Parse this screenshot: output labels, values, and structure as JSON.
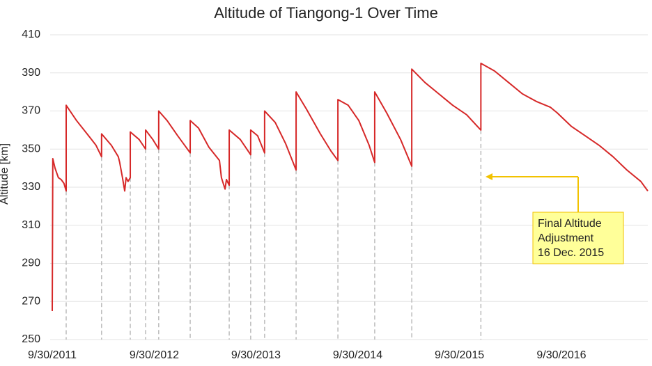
{
  "chart_data": {
    "type": "line",
    "title": "Altitude of Tiangong-1 Over Time",
    "y_label": "Altitude [km]",
    "x": [
      "2011-09-30",
      "2011-10-02",
      "2011-10-10",
      "2011-10-22",
      "2011-11-01",
      "2011-11-11",
      "2011-11-19",
      "2011-11-19",
      "2011-12-26",
      "2012-02-02",
      "2012-03-05",
      "2012-03-25",
      "2012-03-25",
      "2012-04-29",
      "2012-05-24",
      "2012-05-29",
      "2012-06-08",
      "2012-06-16",
      "2012-06-21",
      "2012-06-28",
      "2012-07-06",
      "2012-07-06",
      "2012-08-07",
      "2012-08-30",
      "2012-08-30",
      "2012-09-25",
      "2012-10-16",
      "2012-10-16",
      "2012-11-15",
      "2012-12-23",
      "2013-02-06",
      "2013-02-06",
      "2013-03-08",
      "2013-04-14",
      "2013-05-22",
      "2013-05-29",
      "2013-06-11",
      "2013-06-16",
      "2013-06-26",
      "2013-06-26",
      "2013-08-05",
      "2013-09-11",
      "2013-09-11",
      "2013-10-06",
      "2013-10-31",
      "2013-10-31",
      "2013-12-08",
      "2014-01-14",
      "2014-02-21",
      "2014-02-21",
      "2014-03-30",
      "2014-05-19",
      "2014-06-26",
      "2014-07-21",
      "2014-07-21",
      "2014-08-27",
      "2014-10-04",
      "2014-11-10",
      "2014-11-30",
      "2014-11-30",
      "2015-01-12",
      "2015-03-03",
      "2015-04-12",
      "2015-04-12",
      "2015-05-29",
      "2015-07-18",
      "2015-09-06",
      "2015-10-26",
      "2015-12-03",
      "2015-12-16",
      "2015-12-16",
      "2016-02-03",
      "2016-03-24",
      "2016-05-13",
      "2016-07-02",
      "2016-08-21",
      "2016-09-15",
      "2016-11-04",
      "2016-12-24",
      "2017-02-12",
      "2017-04-03",
      "2017-05-23",
      "2017-07-12",
      "2017-08-06"
    ],
    "series": [
      {
        "name": "Altitude",
        "color": "#d62828",
        "values": [
          265,
          345,
          340,
          335,
          334,
          332,
          328,
          373,
          365,
          358,
          352,
          346,
          358,
          352,
          346,
          343,
          335,
          328,
          335,
          333,
          335,
          359,
          355,
          350,
          360,
          355,
          350,
          370,
          365,
          357,
          348,
          365,
          361,
          351,
          344,
          335,
          329,
          334,
          331,
          360,
          355,
          347,
          360,
          357,
          348,
          370,
          364,
          353,
          339,
          380,
          371,
          358,
          349,
          344,
          376,
          373,
          365,
          352,
          343,
          380,
          369,
          355,
          341,
          392,
          385,
          379,
          373,
          368,
          362,
          360,
          395,
          391,
          385,
          379,
          375,
          372,
          369,
          362,
          357,
          352,
          346,
          339,
          333,
          328
        ]
      }
    ],
    "xlim": [
      "2011-09-30",
      "2017-08-06"
    ],
    "xticks": [
      {
        "value": "2011-09-30",
        "label": "9/30/2011"
      },
      {
        "value": "2012-09-30",
        "label": "9/30/2012"
      },
      {
        "value": "2013-09-30",
        "label": "9/30/2013"
      },
      {
        "value": "2014-09-30",
        "label": "9/30/2014"
      },
      {
        "value": "2015-09-30",
        "label": "9/30/2015"
      },
      {
        "value": "2016-09-30",
        "label": "9/30/2016"
      }
    ],
    "ylim": [
      250,
      410
    ],
    "yticks": [
      250,
      270,
      290,
      310,
      330,
      350,
      370,
      390,
      410
    ],
    "grid": true,
    "annotation": [
      "Final Altitude",
      "Adjustment",
      "16 Dec. 2015"
    ]
  }
}
